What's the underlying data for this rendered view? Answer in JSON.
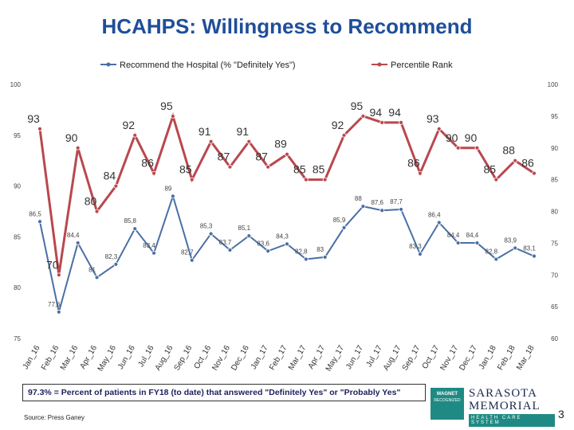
{
  "title": "HCAHPS: Willingness to Recommend",
  "note": "97.3% = Percent of patients in FY18 (to date) that answered \"Definitely Yes\" or \"Probably Yes\"",
  "source": "Source: Press Ganey",
  "page_number": "3",
  "logo": {
    "magnet_text": "MAGNET",
    "magnet_sub": "RECOGNIZED",
    "name_line1": "SARASOTA",
    "name_line2": "MEMORIAL",
    "name_line3": "HEALTH CARE SYSTEM"
  },
  "colors": {
    "recommend": "#4a6fa5",
    "percentile": "#b9484e",
    "title": "#1f4e9a"
  },
  "chart_data": {
    "type": "line",
    "x": [
      "Jan_16",
      "Feb_16",
      "Mar_16",
      "Apr_16",
      "May_16",
      "Jun_16",
      "Jul_16",
      "Aug_16",
      "Sep_16",
      "Oct_16",
      "Nov_16",
      "Dec_16",
      "Jan_17",
      "Feb_17",
      "Mar_17",
      "Apr_17",
      "May_17",
      "Jun_17",
      "Jul_17",
      "Aug_17",
      "Sep_17",
      "Oct_17",
      "Nov_17",
      "Dec_17",
      "Jan_18",
      "Feb_18",
      "Mar_18"
    ],
    "left_axis": {
      "min": 75,
      "max": 100,
      "ticks": [
        "75",
        "80",
        "85",
        "90",
        "95",
        "100"
      ]
    },
    "right_axis": {
      "min": 60,
      "max": 100,
      "ticks": [
        "60",
        "65",
        "70",
        "75",
        "80",
        "85",
        "90",
        "95",
        "100"
      ]
    },
    "legend_position": "top",
    "grid": false,
    "series": [
      {
        "name": "Recommend the Hospital (% \"Definitely Yes\")",
        "axis": "left",
        "values": [
          86.5,
          77.6,
          84.4,
          81,
          82.3,
          85.8,
          83.4,
          89,
          82.7,
          85.3,
          83.7,
          85.1,
          83.6,
          84.3,
          82.8,
          83,
          85.9,
          88,
          87.6,
          87.7,
          83.3,
          86.4,
          84.4,
          84.4,
          82.8,
          83.9,
          83.1
        ],
        "labels": [
          "86,5",
          "77,6",
          "84,4",
          "81",
          "82,3",
          "85,8",
          "83,4",
          "89",
          "82,7",
          "85,3",
          "83,7",
          "85,1",
          "83,6",
          "84,3",
          "82,8",
          "83",
          "85,9",
          "88",
          "87,6",
          "87,7",
          "83,3",
          "86,4",
          "84,4",
          "84,4",
          "82,8",
          "83,9",
          "83,1"
        ]
      },
      {
        "name": "Percentile Rank",
        "axis": "right",
        "values": [
          93,
          70,
          90,
          80,
          84,
          92,
          86,
          95,
          85,
          91,
          87,
          91,
          87,
          89,
          85,
          85,
          92,
          95,
          94,
          94,
          86,
          93,
          90,
          90,
          85,
          88,
          86
        ],
        "labels": [
          "93",
          "70",
          "90",
          "80",
          "84",
          "92",
          "86",
          "95",
          "85",
          "91",
          "87",
          "91",
          "87",
          "89",
          "85",
          "85",
          "92",
          "95",
          "94",
          "94",
          "86",
          "93",
          "90",
          "90",
          "85",
          "88",
          "86"
        ]
      }
    ]
  }
}
